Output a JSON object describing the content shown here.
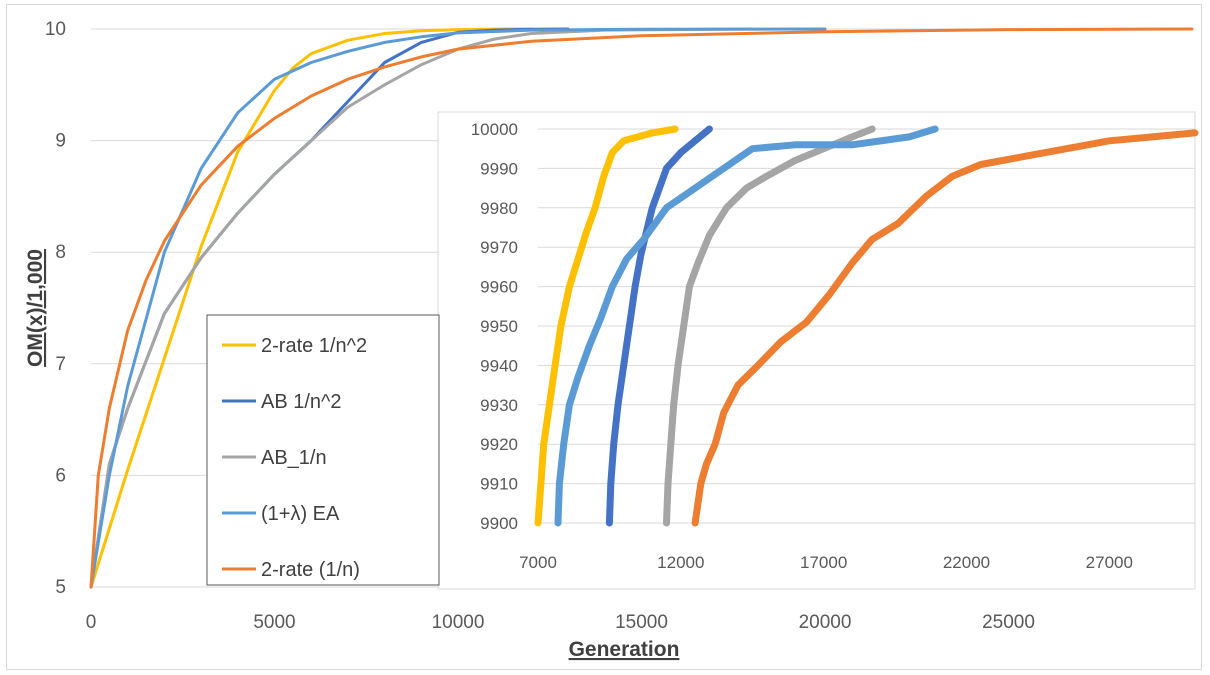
{
  "chart_data": [
    {
      "type": "line",
      "xlabel": "Generation",
      "ylabel": "OM(x)/1,000",
      "xlim": [
        0,
        30000
      ],
      "ylim": [
        5,
        10
      ],
      "x_ticks": [
        "0",
        "5000",
        "10000",
        "15000",
        "20000",
        "25000"
      ],
      "y_ticks": [
        "5",
        "6",
        "7",
        "8",
        "9",
        "10"
      ],
      "grid": "horizontal",
      "legend_position": "bottom-left",
      "series": [
        {
          "name": "2-rate 1/n^2",
          "color": "#FFC000",
          "x": [
            0,
            1000,
            2000,
            3000,
            4000,
            5000,
            5500,
            6000,
            7000,
            8000,
            9000,
            10000,
            11000,
            12000
          ],
          "y": [
            5.0,
            6.05,
            7.05,
            8.05,
            8.9,
            9.45,
            9.65,
            9.78,
            9.9,
            9.96,
            9.985,
            9.995,
            9.999,
            10.0
          ]
        },
        {
          "name": "AB 1/n^2",
          "color": "#4472C4",
          "x": [
            0,
            500,
            1000,
            2000,
            3000,
            4000,
            5000,
            6000,
            7000,
            8000,
            9000,
            10000,
            11000,
            12000,
            13000
          ],
          "y": [
            5.0,
            6.1,
            6.6,
            7.45,
            7.95,
            8.35,
            8.7,
            9.0,
            9.35,
            9.7,
            9.88,
            9.97,
            9.99,
            9.998,
            10.0
          ]
        },
        {
          "name": "AB_1/n",
          "color": "#A5A5A5",
          "x": [
            0,
            500,
            1000,
            2000,
            3000,
            4000,
            5000,
            6000,
            7000,
            8000,
            9000,
            10000,
            11000,
            12000,
            14000,
            18000
          ],
          "y": [
            5.0,
            6.1,
            6.6,
            7.45,
            7.95,
            8.35,
            8.7,
            9.0,
            9.3,
            9.5,
            9.68,
            9.82,
            9.91,
            9.96,
            9.99,
            10.0
          ]
        },
        {
          "name": "(1+λ) EA",
          "color": "#5B9BD5",
          "x": [
            0,
            500,
            1000,
            2000,
            3000,
            4000,
            5000,
            6000,
            7000,
            8000,
            9000,
            10000,
            12000,
            15000,
            20000
          ],
          "y": [
            5.0,
            6.0,
            6.8,
            8.0,
            8.75,
            9.25,
            9.55,
            9.7,
            9.8,
            9.88,
            9.93,
            9.965,
            9.99,
            9.998,
            10.0
          ]
        },
        {
          "name": "2-rate (1/n)",
          "color": "#ED7D31",
          "x": [
            0,
            200,
            500,
            1000,
            1500,
            2000,
            3000,
            4000,
            5000,
            6000,
            7000,
            8000,
            9000,
            10000,
            12000,
            15000,
            20000,
            25000,
            30000
          ],
          "y": [
            5.0,
            6.0,
            6.6,
            7.3,
            7.75,
            8.1,
            8.6,
            8.95,
            9.2,
            9.4,
            9.55,
            9.66,
            9.75,
            9.82,
            9.89,
            9.94,
            9.975,
            9.995,
            10.0
          ]
        }
      ]
    },
    {
      "type": "line",
      "xlim": [
        7000,
        30000
      ],
      "ylim": [
        9900,
        10000
      ],
      "x_ticks": [
        "7000",
        "12000",
        "17000",
        "22000",
        "27000"
      ],
      "y_ticks": [
        "9900",
        "9910",
        "9920",
        "9930",
        "9940",
        "9950",
        "9960",
        "9970",
        "9980",
        "9990",
        "10000"
      ],
      "grid": "horizontal",
      "series": [
        {
          "color": "#FFC000",
          "x": [
            7000,
            7100,
            7200,
            7400,
            7600,
            7800,
            8100,
            8400,
            8700,
            9000,
            9300,
            9600,
            10000,
            11000,
            11800
          ],
          "y": [
            9900,
            9910,
            9920,
            9930,
            9940,
            9950,
            9960,
            9967,
            9974,
            9980,
            9988,
            9994,
            9997,
            9999,
            10000
          ]
        },
        {
          "color": "#4472C4",
          "x": [
            9500,
            9550,
            9650,
            9800,
            10000,
            10200,
            10400,
            10600,
            10800,
            11000,
            11200,
            11500,
            12000,
            12500,
            13000
          ],
          "y": [
            9900,
            9910,
            9920,
            9930,
            9940,
            9950,
            9960,
            9968,
            9974,
            9980,
            9984,
            9990,
            9994,
            9997,
            10000
          ]
        },
        {
          "color": "#A5A5A5",
          "x": [
            11500,
            11550,
            11650,
            11750,
            11900,
            12100,
            12300,
            12600,
            13000,
            13600,
            14300,
            15000,
            16000,
            17000,
            18000,
            18700
          ],
          "y": [
            9900,
            9910,
            9920,
            9930,
            9940,
            9950,
            9960,
            9966,
            9973,
            9980,
            9985,
            9988,
            9992,
            9995,
            9998,
            10000
          ]
        },
        {
          "color": "#5B9BD5",
          "x": [
            7700,
            7750,
            7900,
            8100,
            8400,
            8800,
            9200,
            9600,
            10100,
            10700,
            11500,
            12500,
            13500,
            14500,
            16000,
            18000,
            20000,
            20900
          ],
          "y": [
            9900,
            9910,
            9920,
            9930,
            9937,
            9945,
            9952,
            9960,
            9967,
            9972,
            9980,
            9985,
            9990,
            9995,
            9996,
            9996,
            9998,
            10000
          ]
        },
        {
          "color": "#ED7D31",
          "x": [
            12500,
            12700,
            12900,
            13200,
            13500,
            14000,
            14700,
            15500,
            16400,
            17200,
            18000,
            18700,
            19600,
            20600,
            21500,
            22500,
            24000,
            25500,
            27000,
            28500,
            30000
          ],
          "y": [
            9900,
            9910,
            9915,
            9920,
            9928,
            9935,
            9940,
            9946,
            9951,
            9958,
            9966,
            9972,
            9976,
            9983,
            9988,
            9991,
            9993,
            9995,
            9997,
            9998,
            9999
          ]
        }
      ]
    }
  ]
}
